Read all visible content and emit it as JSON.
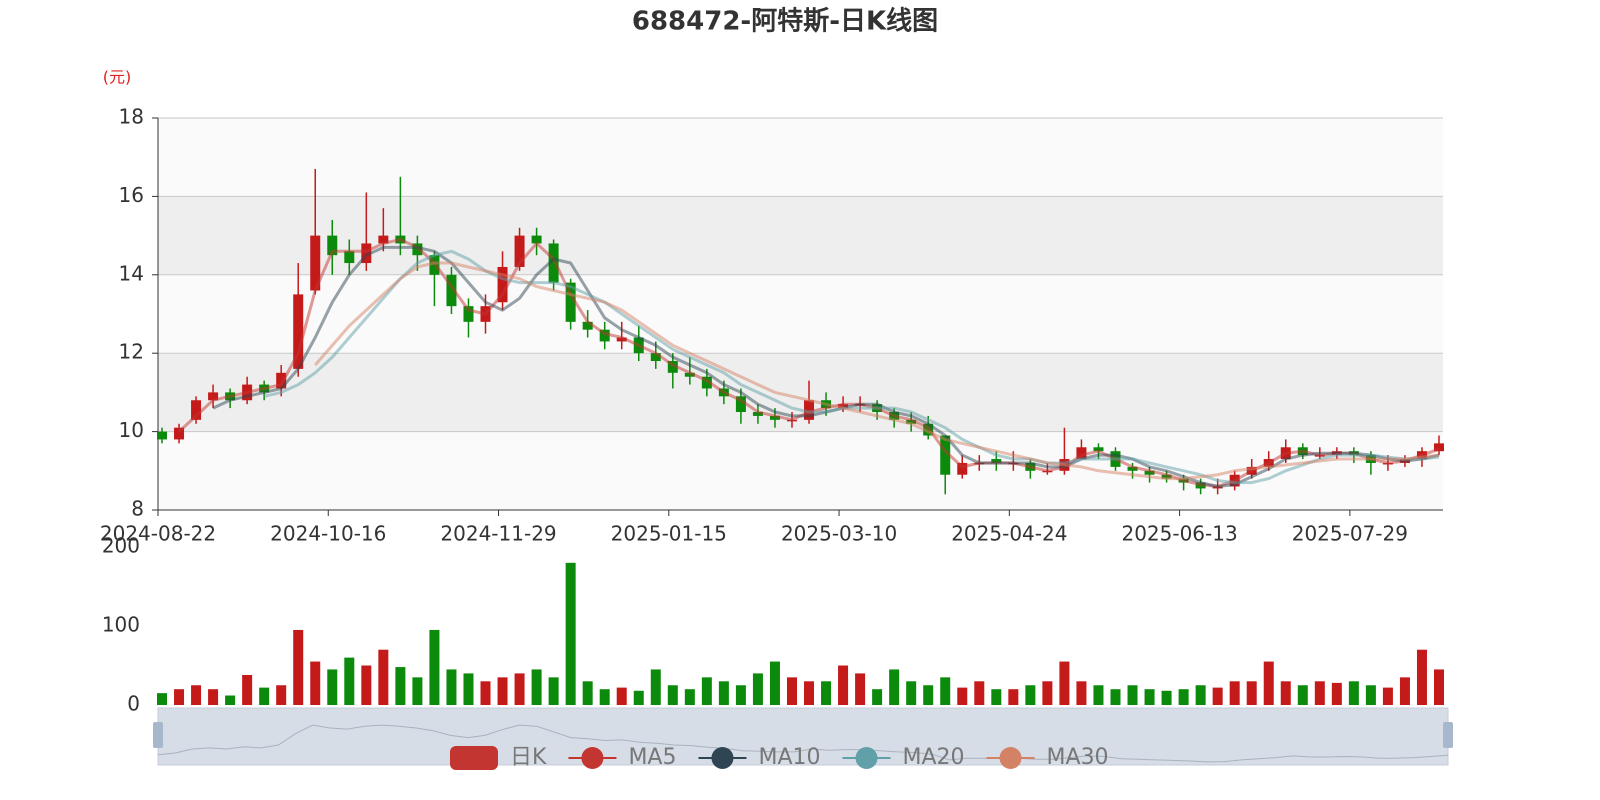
{
  "chart_data": {
    "type": "candlestick",
    "title": "688472-阿特斯-日K线图",
    "y_unit": "(元)",
    "categories": [
      "2024-08-22",
      null,
      null,
      null,
      null,
      null,
      null,
      null,
      null,
      null,
      "2024-10-16",
      null,
      null,
      null,
      null,
      null,
      null,
      null,
      null,
      null,
      "2024-11-29",
      null,
      null,
      null,
      null,
      null,
      null,
      null,
      null,
      null,
      "2025-01-15",
      null,
      null,
      null,
      null,
      null,
      null,
      null,
      null,
      null,
      "2025-03-10",
      null,
      null,
      null,
      null,
      null,
      null,
      null,
      null,
      null,
      "2025-04-24",
      null,
      null,
      null,
      null,
      null,
      null,
      null,
      null,
      null,
      "2025-06-13",
      null,
      null,
      null,
      null,
      null,
      null,
      null,
      null,
      null,
      "2025-07-29",
      null,
      null,
      null,
      null,
      null
    ],
    "ylim": [
      8,
      18
    ],
    "yticks": [
      8,
      10,
      12,
      14,
      16,
      18
    ],
    "grid": true,
    "legend": "bottom",
    "series": [
      {
        "name": "日K",
        "color": "#c23531",
        "up_color": "#c41a1a",
        "down_color": "#0b8a0b",
        "open": [
          10.0,
          9.8,
          10.3,
          10.8,
          11.0,
          10.8,
          11.2,
          11.1,
          11.6,
          13.6,
          15.0,
          14.6,
          14.3,
          14.8,
          15.0,
          14.8,
          14.5,
          14.0,
          13.2,
          12.8,
          13.3,
          14.2,
          15.0,
          14.8,
          13.8,
          12.8,
          12.6,
          12.3,
          12.4,
          12.0,
          11.8,
          11.5,
          11.4,
          11.1,
          10.9,
          10.5,
          10.4,
          10.3,
          10.3,
          10.8,
          10.6,
          10.7,
          10.7,
          10.5,
          10.3,
          10.2,
          9.9,
          8.9,
          9.2,
          9.3,
          9.2,
          9.2,
          9.0,
          9.0,
          9.3,
          9.6,
          9.5,
          9.1,
          9.0,
          8.9,
          8.8,
          8.7,
          8.55,
          8.6,
          8.9,
          9.1,
          9.3,
          9.6,
          9.4,
          9.4,
          9.5,
          9.4,
          9.2,
          9.2,
          9.3,
          9.5
        ],
        "close": [
          9.8,
          10.1,
          10.8,
          11.0,
          10.8,
          11.2,
          11.0,
          11.5,
          13.5,
          15.0,
          14.5,
          14.3,
          14.8,
          15.0,
          14.8,
          14.5,
          14.0,
          13.2,
          12.8,
          13.2,
          14.2,
          15.0,
          14.8,
          13.8,
          12.8,
          12.6,
          12.3,
          12.4,
          12.0,
          11.8,
          11.5,
          11.4,
          11.1,
          10.9,
          10.5,
          10.4,
          10.3,
          10.3,
          10.8,
          10.6,
          10.7,
          10.7,
          10.5,
          10.3,
          10.2,
          9.9,
          8.9,
          9.2,
          9.2,
          9.2,
          9.2,
          9.0,
          9.0,
          9.3,
          9.6,
          9.5,
          9.1,
          9.0,
          8.9,
          8.8,
          8.7,
          8.55,
          8.6,
          8.9,
          9.1,
          9.3,
          9.6,
          9.4,
          9.4,
          9.5,
          9.4,
          9.2,
          9.2,
          9.3,
          9.5,
          9.7
        ],
        "low": [
          9.7,
          9.7,
          10.2,
          10.6,
          10.6,
          10.7,
          10.8,
          10.9,
          11.4,
          13.5,
          14.0,
          14.0,
          14.1,
          14.6,
          14.5,
          14.1,
          13.2,
          13.0,
          12.4,
          12.5,
          13.1,
          14.1,
          14.5,
          13.6,
          12.6,
          12.4,
          12.1,
          12.1,
          11.8,
          11.6,
          11.1,
          11.2,
          10.9,
          10.7,
          10.2,
          10.2,
          10.1,
          10.1,
          10.2,
          10.4,
          10.5,
          10.5,
          10.3,
          10.1,
          10.0,
          9.8,
          8.4,
          8.8,
          9.0,
          9.0,
          9.0,
          8.8,
          8.9,
          8.9,
          9.3,
          9.3,
          9.0,
          8.8,
          8.7,
          8.7,
          8.5,
          8.4,
          8.4,
          8.5,
          8.8,
          9.0,
          9.2,
          9.3,
          9.3,
          9.3,
          9.2,
          8.9,
          9.0,
          9.1,
          9.1,
          9.4
        ],
        "high": [
          10.1,
          10.2,
          10.9,
          11.2,
          11.1,
          11.4,
          11.3,
          11.7,
          14.3,
          16.7,
          15.4,
          14.9,
          16.1,
          15.7,
          16.5,
          15.0,
          14.6,
          14.2,
          13.4,
          13.5,
          14.6,
          15.2,
          15.2,
          14.9,
          13.9,
          13.1,
          12.8,
          12.8,
          12.7,
          12.3,
          12.0,
          11.9,
          11.6,
          11.3,
          11.1,
          10.7,
          10.6,
          10.5,
          11.3,
          11.0,
          10.9,
          10.9,
          10.8,
          10.6,
          10.5,
          10.4,
          9.9,
          9.4,
          9.4,
          9.5,
          9.5,
          9.3,
          9.2,
          10.1,
          9.8,
          9.7,
          9.6,
          9.2,
          9.1,
          9.0,
          8.9,
          8.8,
          8.8,
          9.0,
          9.3,
          9.5,
          9.8,
          9.7,
          9.6,
          9.6,
          9.6,
          9.5,
          9.4,
          9.4,
          9.6,
          9.9
        ]
      },
      {
        "name": "MA5",
        "color": "#c23531",
        "values": [
          null,
          10.0,
          10.4,
          10.8,
          10.9,
          11.0,
          11.1,
          11.2,
          12.0,
          13.6,
          14.6,
          14.6,
          14.6,
          14.8,
          14.9,
          14.7,
          14.3,
          13.7,
          13.1,
          13.0,
          13.5,
          14.3,
          14.8,
          14.4,
          13.5,
          12.8,
          12.5,
          12.4,
          12.2,
          12.0,
          11.7,
          11.5,
          11.3,
          11.0,
          10.8,
          10.5,
          10.4,
          10.3,
          10.5,
          10.6,
          10.7,
          10.7,
          10.6,
          10.4,
          10.3,
          10.1,
          9.5,
          9.1,
          9.2,
          9.2,
          9.2,
          9.1,
          9.0,
          9.1,
          9.4,
          9.5,
          9.3,
          9.1,
          9.0,
          8.9,
          8.75,
          8.65,
          8.6,
          8.75,
          9.0,
          9.2,
          9.45,
          9.5,
          9.4,
          9.45,
          9.45,
          9.3,
          9.2,
          9.25,
          9.4,
          9.55
        ]
      },
      {
        "name": "MA10",
        "color": "#2f4554",
        "values": [
          null,
          null,
          null,
          10.6,
          10.8,
          10.9,
          11.0,
          11.1,
          11.6,
          12.4,
          13.3,
          14.0,
          14.5,
          14.7,
          14.7,
          14.7,
          14.6,
          14.3,
          13.8,
          13.3,
          13.1,
          13.4,
          14.0,
          14.4,
          14.3,
          13.6,
          12.9,
          12.6,
          12.4,
          12.2,
          11.9,
          11.7,
          11.5,
          11.2,
          11.0,
          10.7,
          10.5,
          10.4,
          10.4,
          10.5,
          10.6,
          10.7,
          10.7,
          10.5,
          10.4,
          10.2,
          9.9,
          9.4,
          9.2,
          9.2,
          9.2,
          9.2,
          9.1,
          9.1,
          9.3,
          9.4,
          9.4,
          9.3,
          9.1,
          9.0,
          8.85,
          8.7,
          8.6,
          8.65,
          8.85,
          9.05,
          9.3,
          9.4,
          9.45,
          9.45,
          9.45,
          9.4,
          9.3,
          9.25,
          9.3,
          9.4
        ]
      },
      {
        "name": "MA20",
        "color": "#61a0a8",
        "values": [
          null,
          null,
          null,
          null,
          null,
          null,
          10.9,
          11.0,
          11.2,
          11.5,
          11.9,
          12.4,
          12.9,
          13.4,
          13.9,
          14.3,
          14.5,
          14.6,
          14.4,
          14.1,
          13.9,
          13.8,
          13.8,
          13.8,
          13.7,
          13.5,
          13.3,
          13.0,
          12.7,
          12.4,
          12.1,
          11.9,
          11.7,
          11.5,
          11.2,
          11.0,
          10.8,
          10.6,
          10.5,
          10.5,
          10.6,
          10.6,
          10.6,
          10.6,
          10.5,
          10.3,
          10.1,
          9.8,
          9.6,
          9.4,
          9.3,
          9.3,
          9.2,
          9.2,
          9.3,
          9.3,
          9.3,
          9.3,
          9.2,
          9.1,
          9.0,
          8.9,
          8.75,
          8.7,
          8.7,
          8.8,
          9.0,
          9.15,
          9.3,
          9.4,
          9.4,
          9.4,
          9.35,
          9.3,
          9.3,
          9.35
        ]
      },
      {
        "name": "MA30",
        "color": "#d48265",
        "values": [
          null,
          null,
          null,
          null,
          null,
          null,
          null,
          null,
          null,
          11.7,
          12.2,
          12.7,
          13.1,
          13.5,
          13.9,
          14.2,
          14.3,
          14.3,
          14.2,
          14.1,
          14.0,
          13.9,
          13.7,
          13.6,
          13.5,
          13.4,
          13.3,
          13.1,
          12.8,
          12.5,
          12.2,
          12.0,
          11.8,
          11.6,
          11.4,
          11.2,
          11.0,
          10.9,
          10.8,
          10.7,
          10.6,
          10.5,
          10.4,
          10.3,
          10.2,
          10.0,
          9.8,
          9.7,
          9.6,
          9.5,
          9.4,
          9.3,
          9.2,
          9.15,
          9.1,
          9.0,
          8.95,
          8.9,
          8.85,
          8.8,
          8.8,
          8.85,
          8.9,
          9.0,
          9.05,
          9.1,
          9.15,
          9.2,
          9.25,
          9.3,
          9.3,
          9.3,
          9.3,
          9.3,
          9.35,
          9.4
        ]
      }
    ],
    "volume": {
      "ylim": [
        0,
        200
      ],
      "yticks": [
        0,
        100,
        200
      ],
      "values": [
        15,
        20,
        25,
        20,
        12,
        38,
        22,
        25,
        95,
        55,
        45,
        60,
        50,
        70,
        48,
        35,
        95,
        45,
        40,
        30,
        35,
        40,
        45,
        35,
        180,
        30,
        20,
        22,
        18,
        45,
        25,
        20,
        35,
        30,
        25,
        40,
        55,
        35,
        30,
        30,
        50,
        40,
        20,
        45,
        30,
        25,
        35,
        22,
        30,
        20,
        20,
        25,
        30,
        55,
        30,
        25,
        20,
        25,
        20,
        18,
        20,
        25,
        22,
        30,
        30,
        55,
        30,
        25,
        30,
        28,
        30,
        25,
        22,
        35,
        70,
        45
      ]
    }
  }
}
